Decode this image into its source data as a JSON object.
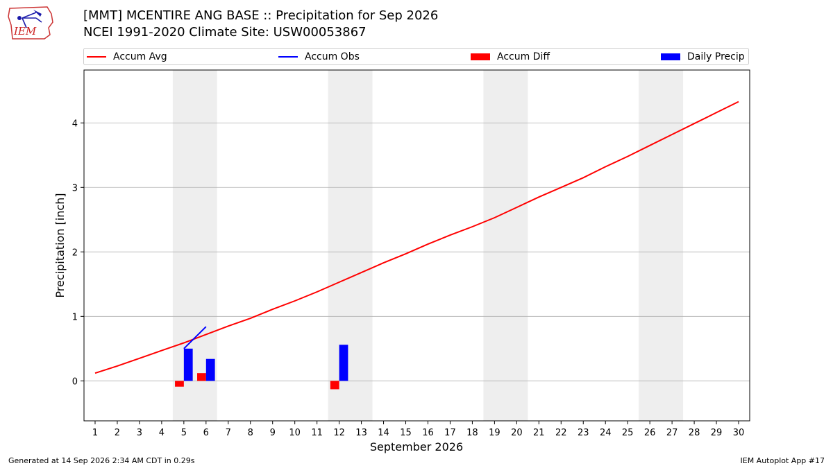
{
  "header": {
    "title": "[MMT] MCENTIRE ANG BASE :: Precipitation for Sep 2026",
    "subtitle": "NCEI 1991-2020 Climate Site: USW00053867",
    "logo_text": "IEM"
  },
  "footer": {
    "generated": "Generated at 14 Sep 2026 2:34 AM CDT in 0.29s",
    "app": "IEM Autoplot App #17"
  },
  "colors": {
    "accum_avg": "#ff0000",
    "accum_obs": "#0000ff",
    "accum_diff": "#ff0000",
    "daily_precip": "#0000ff",
    "weekend_band": "#eeeeee",
    "grid": "#b0b0b0"
  },
  "chart_data": {
    "type": "bar+line",
    "title": "[MMT] MCENTIRE ANG BASE :: Precipitation for Sep 2026",
    "xlabel": "September 2026",
    "ylabel": "Precipitation [inch]",
    "xlim": [
      0.5,
      30.5
    ],
    "ylim": [
      -0.62,
      4.82
    ],
    "yticks": [
      0,
      1,
      2,
      3,
      4
    ],
    "ygrid": true,
    "legend_position": "top",
    "x_tick_labels": [
      1,
      2,
      3,
      4,
      5,
      6,
      7,
      8,
      9,
      10,
      11,
      12,
      13,
      14,
      15,
      16,
      17,
      18,
      19,
      20,
      21,
      22,
      23,
      24,
      25,
      26,
      27,
      28,
      29,
      30
    ],
    "weekend_bands": [
      [
        4.5,
        6.5
      ],
      [
        11.5,
        13.5
      ],
      [
        18.5,
        20.5
      ],
      [
        25.5,
        27.5
      ]
    ],
    "legend": [
      {
        "name": "Accum Avg",
        "kind": "line",
        "color": "#ff0000"
      },
      {
        "name": "Accum Obs",
        "kind": "line",
        "color": "#0000ff"
      },
      {
        "name": "Accum Diff",
        "kind": "patch",
        "color": "#ff0000"
      },
      {
        "name": "Daily Precip",
        "kind": "patch",
        "color": "#0000ff"
      }
    ],
    "accum_avg": {
      "x": [
        1,
        2,
        3,
        4,
        5,
        6,
        7,
        8,
        9,
        10,
        11,
        12,
        13,
        14,
        15,
        16,
        17,
        18,
        19,
        20,
        21,
        22,
        23,
        24,
        25,
        26,
        27,
        28,
        29,
        30
      ],
      "y": [
        0.12,
        0.23,
        0.35,
        0.47,
        0.59,
        0.72,
        0.85,
        0.97,
        1.11,
        1.24,
        1.38,
        1.53,
        1.68,
        1.83,
        1.97,
        2.12,
        2.26,
        2.39,
        2.53,
        2.69,
        2.85,
        3.0,
        3.15,
        3.32,
        3.48,
        3.65,
        3.82,
        3.99,
        4.16,
        4.33
      ]
    },
    "accum_obs": {
      "x": [
        5,
        6
      ],
      "y": [
        0.5,
        0.84
      ]
    },
    "accum_diff": {
      "x": [
        5,
        6,
        12
      ],
      "y": [
        -0.09,
        0.12,
        -0.13
      ]
    },
    "daily_precip": {
      "x": [
        5,
        6,
        12
      ],
      "y": [
        0.5,
        0.34,
        0.56
      ]
    }
  }
}
